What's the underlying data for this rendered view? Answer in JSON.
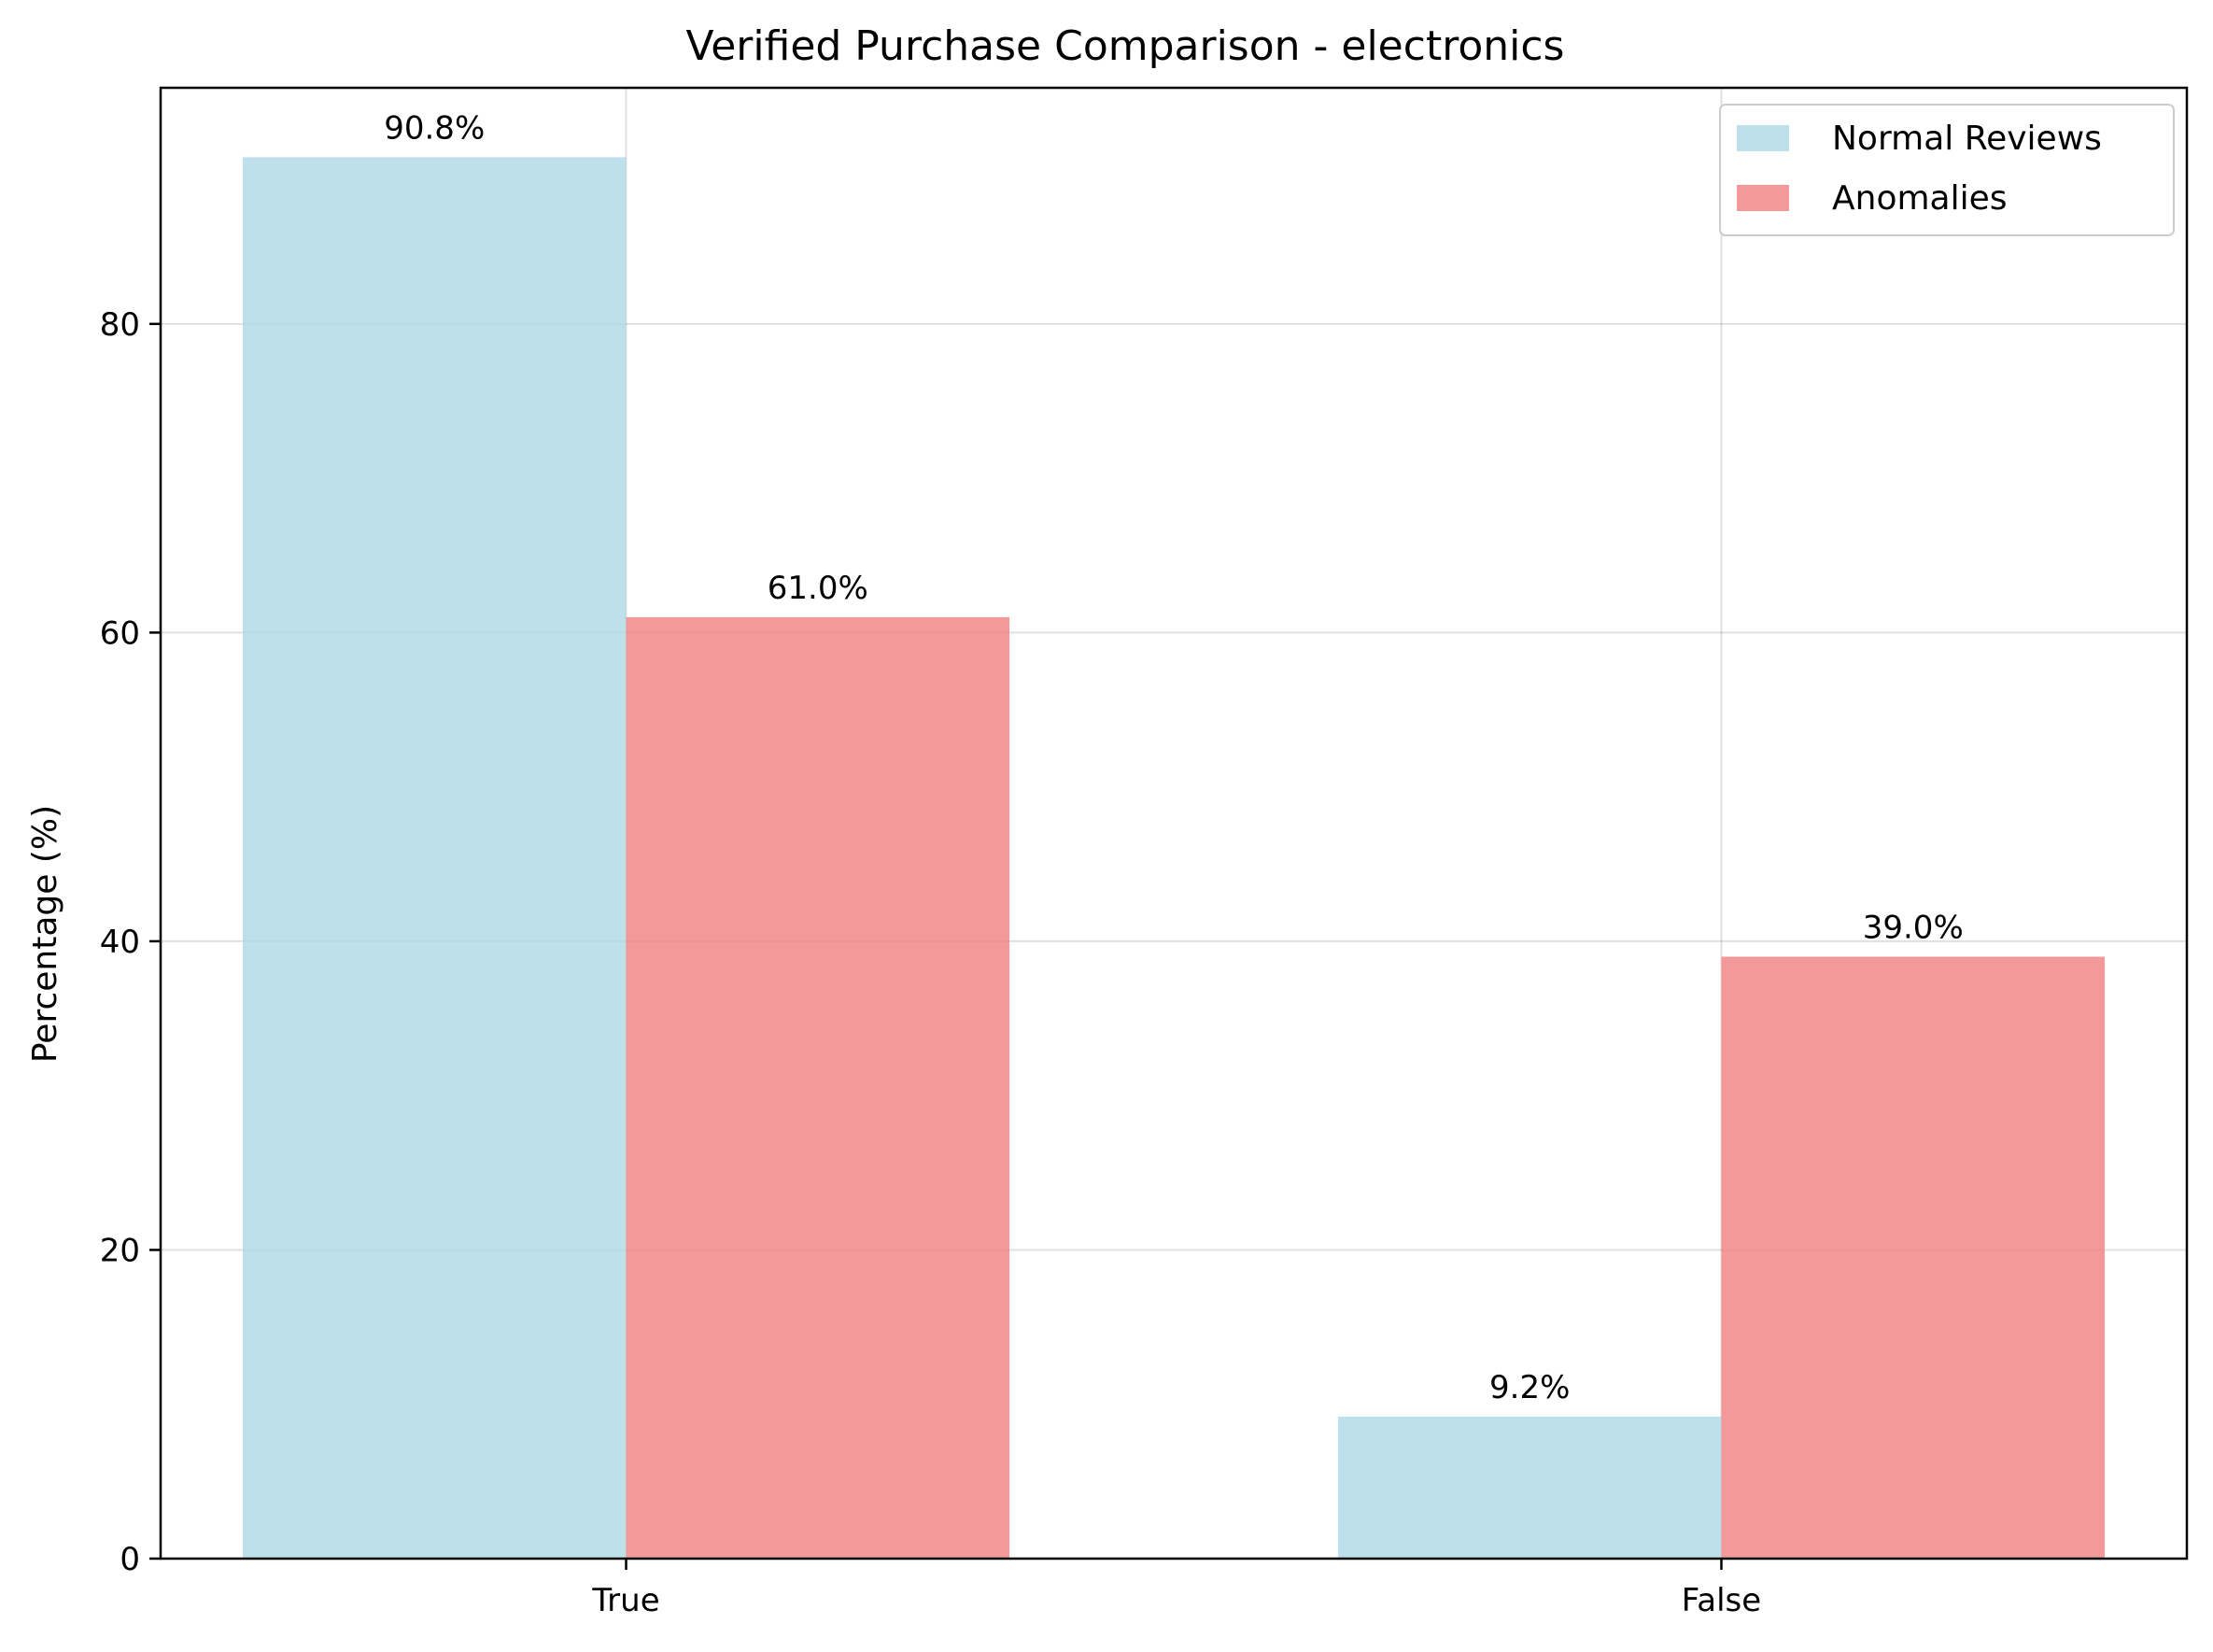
{
  "chart_data": {
    "type": "bar",
    "title": "Verified Purchase Comparison - electronics",
    "xlabel": "",
    "ylabel": "Percentage (%)",
    "categories": [
      "True",
      "False"
    ],
    "series": [
      {
        "name": "Normal Reviews",
        "values": [
          90.8,
          9.2
        ],
        "labels": [
          "90.8%",
          "9.2%"
        ],
        "color": "#add8e6"
      },
      {
        "name": "Anomalies",
        "values": [
          61.0,
          39.0
        ],
        "labels": [
          "61.0%",
          "39.0%"
        ],
        "color": "#f08080"
      }
    ],
    "ylim": [
      0,
      95.3
    ],
    "yticks": [
      0,
      20,
      40,
      60,
      80
    ],
    "ytick_labels": [
      "0",
      "20",
      "40",
      "60",
      "80"
    ],
    "grid": true,
    "legend_position": "top-right"
  }
}
